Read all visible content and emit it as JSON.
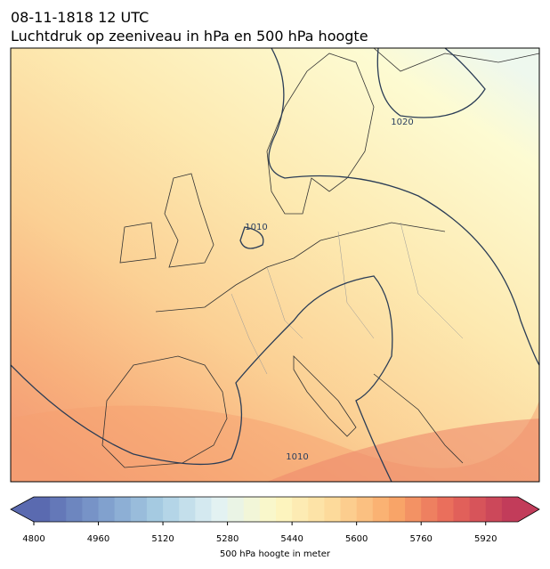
{
  "header": {
    "title": "08-11-1818 12 UTC",
    "subtitle": "Luchtdruk op zeeniveau in hPa en 500 hPa hoogte"
  },
  "map": {
    "contour_labels": [
      "1020",
      "1010",
      "1010"
    ]
  },
  "colorbar": {
    "label": "500 hPa hoogte in meter",
    "lim": [
      4800,
      6000
    ],
    "ticks": [
      4800,
      4960,
      5120,
      5280,
      5440,
      5600,
      5760,
      5920
    ],
    "levels": 30,
    "colors": [
      "#5a6ab0",
      "#7d9ccc",
      "#a8cde3",
      "#e2f2f4",
      "#fdf8c4",
      "#fdd99a",
      "#f9a869",
      "#e8685a",
      "#c23c5a"
    ]
  }
}
